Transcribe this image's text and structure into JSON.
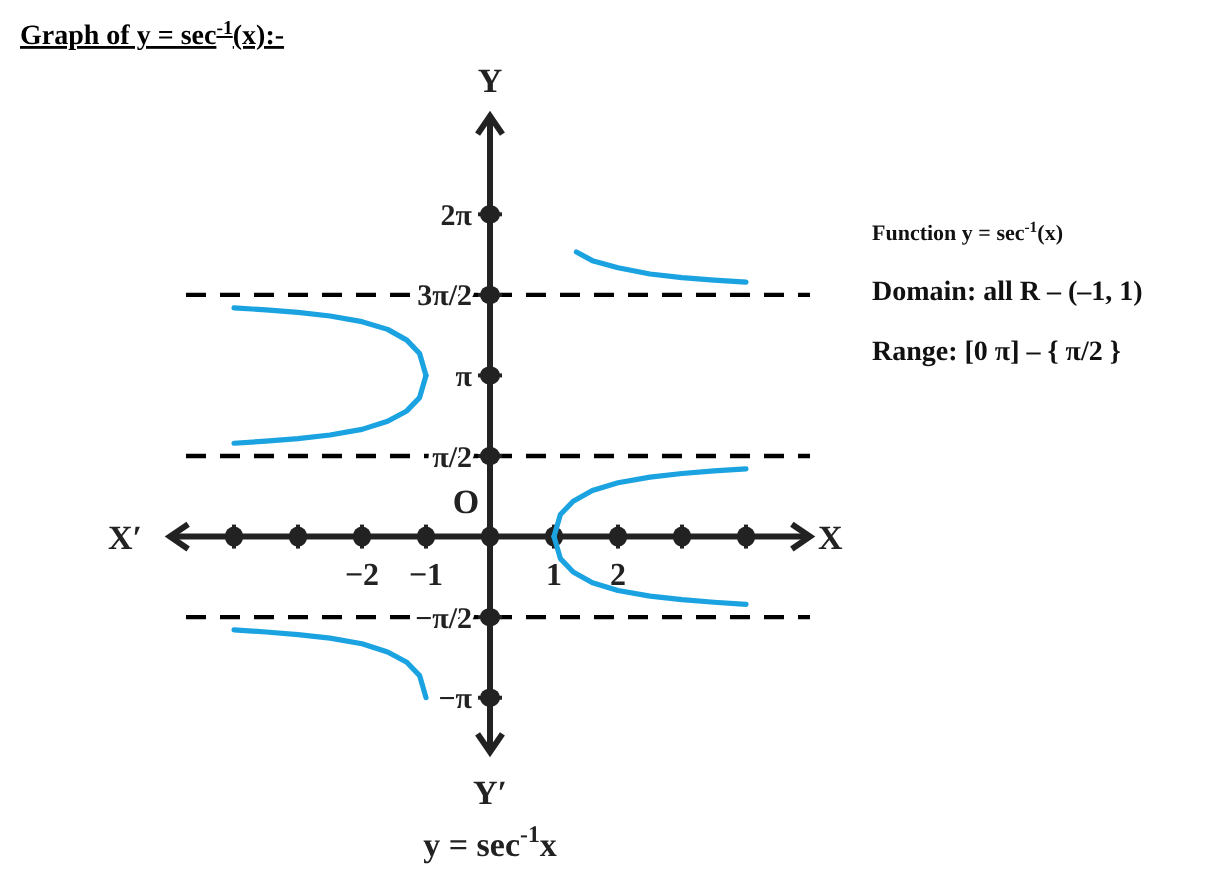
{
  "chart_data": {
    "type": "line",
    "title": "Graph of y = sec$^{-1}$(x):-",
    "xlabel": "X",
    "annotations": [
      "y = sec$^{-1}$x",
      "Function y = sec$^{-1}$(x)",
      "Domain: all R – (–1, 1)",
      "Range:  [0  π] – { π/2 }",
      "X′",
      "Y",
      "Y′",
      "O"
    ],
    "xlim": [
      -5,
      5
    ],
    "ylim": [
      -4.2,
      8.2
    ],
    "xticks": [
      {
        "value": -4,
        "label": null
      },
      {
        "value": -3,
        "label": null
      },
      {
        "value": -2,
        "label": "−2"
      },
      {
        "value": -1,
        "label": "−1"
      },
      {
        "value": 0,
        "label": null
      },
      {
        "value": 1,
        "label": "1"
      },
      {
        "value": 2,
        "label": "2"
      },
      {
        "value": 3,
        "label": null
      },
      {
        "value": 4,
        "label": null
      }
    ],
    "yticks": [
      {
        "value": 6.283,
        "label": "2π"
      },
      {
        "value": 4.712,
        "label": "3π/2"
      },
      {
        "value": 3.142,
        "label": "π"
      },
      {
        "value": 1.571,
        "label": "π/2"
      },
      {
        "value": -1.571,
        "label": "−π/2"
      },
      {
        "value": -3.142,
        "label": "−π"
      }
    ],
    "ref_lines": [
      {
        "axis": "y",
        "value": 4.712,
        "color": "#000000",
        "line_style": "dashed"
      },
      {
        "axis": "y",
        "value": 1.571,
        "color": "#000000",
        "line_style": "dashed"
      },
      {
        "axis": "y",
        "value": -1.571,
        "color": "#000000",
        "line_style": "dashed"
      }
    ],
    "marker": "none",
    "line_style": "solid",
    "grid": false,
    "series": [
      {
        "color": "#1aa3e0",
        "x": [
          1,
          1.1,
          1.3,
          1.6,
          2,
          2.5,
          3,
          3.5,
          4
        ],
        "values": [
          0,
          0.43,
          0.69,
          0.9,
          1.05,
          1.16,
          1.23,
          1.28,
          1.32
        ]
      },
      {
        "color": "#1aa3e0",
        "x": [
          1,
          1.1,
          1.3,
          1.6,
          2,
          2.5,
          3,
          3.5,
          4
        ],
        "values": [
          0,
          -0.43,
          -0.69,
          -0.9,
          -1.05,
          -1.16,
          -1.23,
          -1.28,
          -1.32
        ]
      },
      {
        "color": "#1aa3e0",
        "x": [
          1.35,
          1.6,
          2,
          2.5,
          3,
          3.5,
          4
        ],
        "values": [
          5.55,
          5.38,
          5.24,
          5.12,
          5.05,
          5.0,
          4.96
        ]
      },
      {
        "color": "#1aa3e0",
        "x": [
          -4,
          -3.5,
          -3,
          -2.5,
          -2,
          -1.6,
          -1.3,
          -1.1,
          -1
        ],
        "values": [
          1.82,
          1.86,
          1.91,
          1.98,
          2.09,
          2.25,
          2.45,
          2.71,
          3.14
        ]
      },
      {
        "color": "#1aa3e0",
        "x": [
          -4,
          -3.5,
          -3,
          -2.5,
          -2,
          -1.6,
          -1.3,
          -1.1,
          -1
        ],
        "values": [
          4.46,
          4.42,
          4.37,
          4.3,
          4.19,
          4.04,
          3.83,
          3.57,
          3.14
        ]
      },
      {
        "color": "#1aa3e0",
        "x": [
          -4,
          -3.5,
          -3,
          -2.5,
          -2,
          -1.6,
          -1.3,
          -1.1,
          -1
        ],
        "values": [
          -1.82,
          -1.86,
          -1.91,
          -1.98,
          -2.09,
          -2.25,
          -2.45,
          -2.71,
          -3.14
        ]
      }
    ]
  }
}
